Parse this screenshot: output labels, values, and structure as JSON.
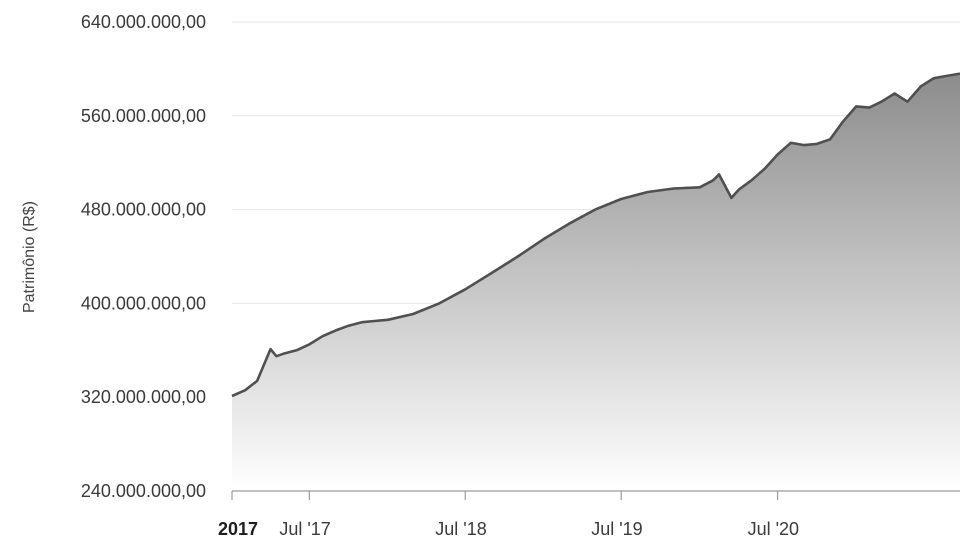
{
  "chart_data": {
    "type": "area",
    "ylabel": "Patrimônio (R$)",
    "ylim": [
      240000000,
      640000000
    ],
    "y_ticks": [
      {
        "value": 640000000,
        "label": "640.000.000,00"
      },
      {
        "value": 560000000,
        "label": "560.000.000,00"
      },
      {
        "value": 480000000,
        "label": "480.000.000,00"
      },
      {
        "value": 400000000,
        "label": "400.000.000,00"
      },
      {
        "value": 320000000,
        "label": "320.000.000,00"
      },
      {
        "value": 240000000,
        "label": "240.000.000,00"
      }
    ],
    "xlim": [
      "2017-01-01",
      "2021-09-01"
    ],
    "x_ticks": [
      {
        "date": "2017-01-01",
        "label": "2017",
        "bold": true
      },
      {
        "date": "2017-07-01",
        "label": "Jul '17",
        "bold": false
      },
      {
        "date": "2018-07-01",
        "label": "Jul '18",
        "bold": false
      },
      {
        "date": "2019-07-01",
        "label": "Jul '19",
        "bold": false
      },
      {
        "date": "2020-07-01",
        "label": "Jul '20",
        "bold": false
      }
    ],
    "grid": true,
    "colors": {
      "line": "#505050",
      "fill_top": "#8c8c8c",
      "fill_bottom": "#ffffff",
      "grid": "#e6e6e6",
      "axis": "#9a9a9a"
    },
    "series": [
      {
        "x": [
          "2017-01-01",
          "2017-02-01",
          "2017-03-01",
          "2017-04-01",
          "2017-04-15",
          "2017-05-01",
          "2017-06-01",
          "2017-07-01",
          "2017-08-01",
          "2017-09-01",
          "2017-10-01",
          "2017-11-01",
          "2017-12-01",
          "2018-01-01",
          "2018-03-01",
          "2018-05-01",
          "2018-07-01",
          "2018-09-01",
          "2018-11-01",
          "2019-01-01",
          "2019-03-01",
          "2019-05-01",
          "2019-07-01",
          "2019-09-01",
          "2019-11-01",
          "2020-01-01",
          "2020-02-01",
          "2020-02-15",
          "2020-03-15",
          "2020-04-01",
          "2020-05-01",
          "2020-06-01",
          "2020-07-01",
          "2020-08-01",
          "2020-09-01",
          "2020-10-01",
          "2020-11-01",
          "2020-12-01",
          "2021-01-01",
          "2021-02-01",
          "2021-03-01",
          "2021-04-01",
          "2021-05-01",
          "2021-06-01",
          "2021-07-01",
          "2021-08-01",
          "2021-09-01"
        ],
        "values": [
          321000000,
          326000000,
          334000000,
          361000000,
          355000000,
          357000000,
          360000000,
          365000000,
          372000000,
          377000000,
          381000000,
          384000000,
          385000000,
          386000000,
          391000000,
          400000000,
          412000000,
          426000000,
          440000000,
          455000000,
          468000000,
          480000000,
          489000000,
          495000000,
          498000000,
          499000000,
          505000000,
          510000000,
          490000000,
          497000000,
          505000000,
          515000000,
          527000000,
          537000000,
          535000000,
          536000000,
          540000000,
          555000000,
          568000000,
          567000000,
          572000000,
          579000000,
          572000000,
          585000000,
          592000000,
          594000000,
          596000000
        ]
      }
    ]
  }
}
